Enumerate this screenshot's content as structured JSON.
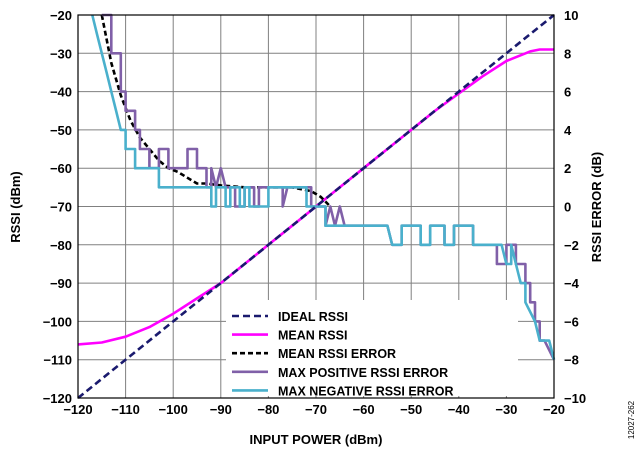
{
  "chart_data": {
    "type": "line",
    "xlabel": "INPUT POWER (dBm)",
    "ylabel": "RSSI (dBm)",
    "y2label": "RSSI ERROR (dB)",
    "figure_id": "12027-262",
    "xlim": [
      -120,
      -20
    ],
    "ylim": [
      -120,
      -20
    ],
    "y2lim": [
      -10,
      10
    ],
    "grid": true,
    "legend_position": "bottom-right",
    "x_ticks": [
      -120,
      -110,
      -100,
      -90,
      -80,
      -70,
      -60,
      -50,
      -40,
      -30,
      -20
    ],
    "x_tick_labels": [
      "−120",
      "−110",
      "−100",
      "−90",
      "−80",
      "−70",
      "−60",
      "−50",
      "−40",
      "−30",
      "−20"
    ],
    "y_ticks": [
      -20,
      -30,
      -40,
      -50,
      -60,
      -70,
      -80,
      -90,
      -100,
      -110,
      -120
    ],
    "y_tick_labels": [
      "−20",
      "−30",
      "−40",
      "−50",
      "−60",
      "−70",
      "−80",
      "−90",
      "−100",
      "−110",
      "−120"
    ],
    "y2_ticks": [
      10,
      8,
      6,
      4,
      2,
      0,
      -2,
      -4,
      -6,
      -8,
      -10
    ],
    "y2_tick_labels": [
      "10",
      "8",
      "6",
      "4",
      "2",
      "0",
      "−2",
      "−4",
      "−6",
      "−8",
      "−10"
    ],
    "series": [
      {
        "name": "IDEAL RSSI",
        "axis": "left",
        "color": "#1a1a6e",
        "dash": "7,4",
        "points": [
          [
            -120,
            -120
          ],
          [
            -20,
            -20
          ]
        ]
      },
      {
        "name": "MEAN RSSI",
        "axis": "left",
        "color": "#ff00ff",
        "dash": "",
        "points": [
          [
            -120,
            -106
          ],
          [
            -115,
            -105.5
          ],
          [
            -110,
            -104
          ],
          [
            -105,
            -101.5
          ],
          [
            -100,
            -98
          ],
          [
            -95,
            -94
          ],
          [
            -90,
            -90
          ],
          [
            -85,
            -85
          ],
          [
            -80,
            -80
          ],
          [
            -75,
            -75
          ],
          [
            -70,
            -70
          ],
          [
            -65,
            -65
          ],
          [
            -60,
            -60
          ],
          [
            -55,
            -55
          ],
          [
            -50,
            -50
          ],
          [
            -45,
            -45
          ],
          [
            -40,
            -40.5
          ],
          [
            -35,
            -36
          ],
          [
            -30,
            -32
          ],
          [
            -25,
            -29.5
          ],
          [
            -23,
            -29
          ],
          [
            -20,
            -29
          ]
        ]
      },
      {
        "name": "MEAN RSSI ERROR",
        "axis": "right",
        "color": "#000000",
        "dash": "5,3",
        "points": [
          [
            -115,
            10
          ],
          [
            -113,
            7.5
          ],
          [
            -111,
            5.8
          ],
          [
            -109,
            4.5
          ],
          [
            -107,
            3.6
          ],
          [
            -105,
            3
          ],
          [
            -103,
            2.4
          ],
          [
            -101,
            2
          ],
          [
            -99,
            1.8
          ],
          [
            -97,
            1.5
          ],
          [
            -95,
            1.2
          ],
          [
            -93,
            1.2
          ],
          [
            -90,
            1.1
          ],
          [
            -85,
            1
          ],
          [
            -80,
            1
          ],
          [
            -75,
            1
          ],
          [
            -71,
            0.8
          ],
          [
            -69,
            0.5
          ],
          [
            -67,
            0
          ]
        ]
      },
      {
        "name": "MAX POSITIVE RSSI ERROR",
        "axis": "right",
        "color": "#8060a8",
        "dash": "",
        "points": [
          [
            -115,
            10
          ],
          [
            -113,
            10
          ],
          [
            -113,
            8
          ],
          [
            -111,
            8
          ],
          [
            -111,
            6
          ],
          [
            -110,
            6
          ],
          [
            -110,
            5
          ],
          [
            -108,
            5
          ],
          [
            -108,
            4
          ],
          [
            -107,
            4
          ],
          [
            -107,
            3
          ],
          [
            -105,
            3
          ],
          [
            -105,
            2
          ],
          [
            -103,
            2
          ],
          [
            -103,
            3
          ],
          [
            -101,
            3
          ],
          [
            -101,
            2
          ],
          [
            -97,
            2
          ],
          [
            -97,
            3
          ],
          [
            -95,
            3
          ],
          [
            -95,
            2
          ],
          [
            -93,
            2
          ],
          [
            -93,
            1
          ],
          [
            -92,
            1
          ],
          [
            -92,
            2
          ],
          [
            -91,
            1
          ],
          [
            -90,
            2
          ],
          [
            -89,
            1
          ],
          [
            -87,
            1
          ],
          [
            -87,
            0
          ],
          [
            -85,
            0
          ],
          [
            -85,
            1
          ],
          [
            -83,
            1
          ],
          [
            -83,
            0
          ],
          [
            -82,
            0
          ],
          [
            -82,
            1
          ],
          [
            -77,
            1
          ],
          [
            -77,
            0
          ],
          [
            -76,
            1
          ],
          [
            -71,
            1
          ],
          [
            -71,
            0
          ],
          [
            -69,
            0
          ],
          [
            -68,
            0
          ],
          [
            -68,
            -1
          ],
          [
            -67,
            0
          ],
          [
            -66,
            -1
          ],
          [
            -65,
            0
          ],
          [
            -64,
            -1
          ],
          [
            -55,
            -1
          ],
          [
            -54,
            -2
          ],
          [
            -52,
            -2
          ],
          [
            -52,
            -1
          ],
          [
            -48,
            -1
          ],
          [
            -48,
            -2
          ],
          [
            -46,
            -2
          ],
          [
            -46,
            -1
          ],
          [
            -43,
            -1
          ],
          [
            -43,
            -2
          ],
          [
            -41,
            -2
          ],
          [
            -41,
            -1
          ],
          [
            -37,
            -1
          ],
          [
            -37,
            -2
          ],
          [
            -32,
            -2
          ],
          [
            -32,
            -3
          ],
          [
            -31,
            -3
          ],
          [
            -30,
            -3
          ],
          [
            -30,
            -2
          ],
          [
            -28,
            -2
          ],
          [
            -28,
            -3
          ],
          [
            -26,
            -3
          ],
          [
            -26,
            -4
          ],
          [
            -25,
            -4
          ],
          [
            -25,
            -5
          ],
          [
            -24,
            -5
          ],
          [
            -24,
            -6
          ],
          [
            -23,
            -6
          ],
          [
            -23,
            -7
          ],
          [
            -22,
            -7
          ],
          [
            -20,
            -8
          ]
        ]
      },
      {
        "name": "MAX NEGATIVE RSSI ERROR",
        "axis": "right",
        "color": "#4ab0cc",
        "dash": "",
        "points": [
          [
            -117,
            10
          ],
          [
            -116,
            9
          ],
          [
            -115,
            8
          ],
          [
            -114,
            7
          ],
          [
            -113,
            6
          ],
          [
            -112,
            5
          ],
          [
            -111,
            4
          ],
          [
            -110,
            4
          ],
          [
            -110,
            3
          ],
          [
            -108,
            3
          ],
          [
            -108,
            2
          ],
          [
            -106,
            2
          ],
          [
            -106,
            2
          ],
          [
            -103,
            2
          ],
          [
            -103,
            1
          ],
          [
            -95,
            1
          ],
          [
            -95,
            1
          ],
          [
            -92,
            1
          ],
          [
            -92,
            0
          ],
          [
            -91,
            0
          ],
          [
            -91,
            1
          ],
          [
            -89,
            1
          ],
          [
            -89,
            0
          ],
          [
            -88,
            0
          ],
          [
            -88,
            1
          ],
          [
            -86,
            1
          ],
          [
            -86,
            0
          ],
          [
            -85,
            0
          ],
          [
            -85,
            1
          ],
          [
            -84,
            1
          ],
          [
            -84,
            0
          ],
          [
            -80,
            0
          ],
          [
            -80,
            1
          ],
          [
            -72,
            1
          ],
          [
            -72,
            0
          ],
          [
            -68,
            0
          ],
          [
            -68,
            -1
          ],
          [
            -55,
            -1
          ],
          [
            -54,
            -2
          ],
          [
            -52,
            -2
          ],
          [
            -52,
            -1
          ],
          [
            -48,
            -1
          ],
          [
            -48,
            -2
          ],
          [
            -46,
            -2
          ],
          [
            -46,
            -1
          ],
          [
            -43,
            -1
          ],
          [
            -43,
            -2
          ],
          [
            -41,
            -2
          ],
          [
            -41,
            -1
          ],
          [
            -37,
            -1
          ],
          [
            -37,
            -2
          ],
          [
            -31,
            -2
          ],
          [
            -30,
            -3
          ],
          [
            -29,
            -3
          ],
          [
            -29,
            -2
          ],
          [
            -28,
            -3
          ],
          [
            -27,
            -4
          ],
          [
            -26,
            -4
          ],
          [
            -26,
            -5
          ],
          [
            -24,
            -6
          ],
          [
            -23,
            -7
          ],
          [
            -21,
            -7
          ],
          [
            -20,
            -8
          ]
        ]
      }
    ]
  }
}
